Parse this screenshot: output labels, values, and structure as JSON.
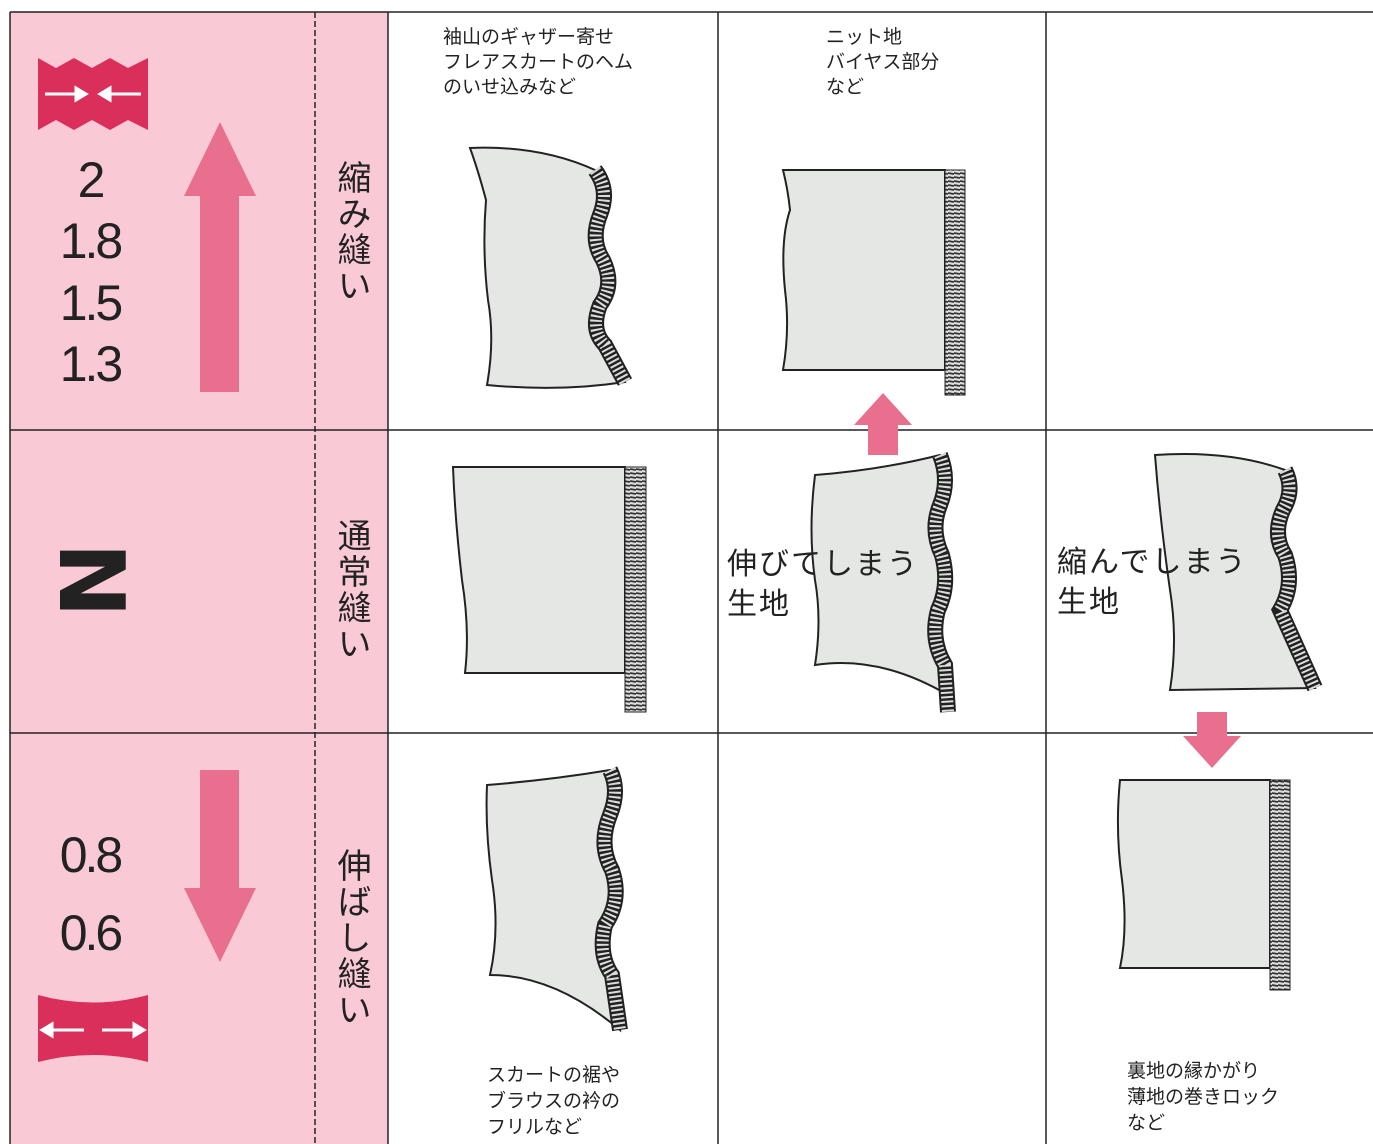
{
  "rows": [
    {
      "settings": [
        "2",
        "1.8",
        "1.5",
        "1.3"
      ],
      "mode": "縮み縫い",
      "notes": [
        [
          "袖山のギャザー寄せ",
          "フレアスカートのヘム",
          "のいせ込みなど"
        ],
        [
          "ニット地",
          "バイヤス部分",
          "など"
        ]
      ]
    },
    {
      "settings": [
        "N"
      ],
      "mode": "通常縫い",
      "notes": [
        [
          "伸びてしまう",
          "生地"
        ],
        [
          "縮んでしまう",
          "生地"
        ]
      ]
    },
    {
      "settings": [
        "0.8",
        "0.6"
      ],
      "mode": "伸ばし縫い",
      "notes": [
        [
          "スカートの裾や",
          "ブラウスの衿の",
          "フリルなど"
        ],
        [
          "裏地の縁かがり",
          "薄地の巻きロック",
          "など"
        ]
      ]
    }
  ]
}
